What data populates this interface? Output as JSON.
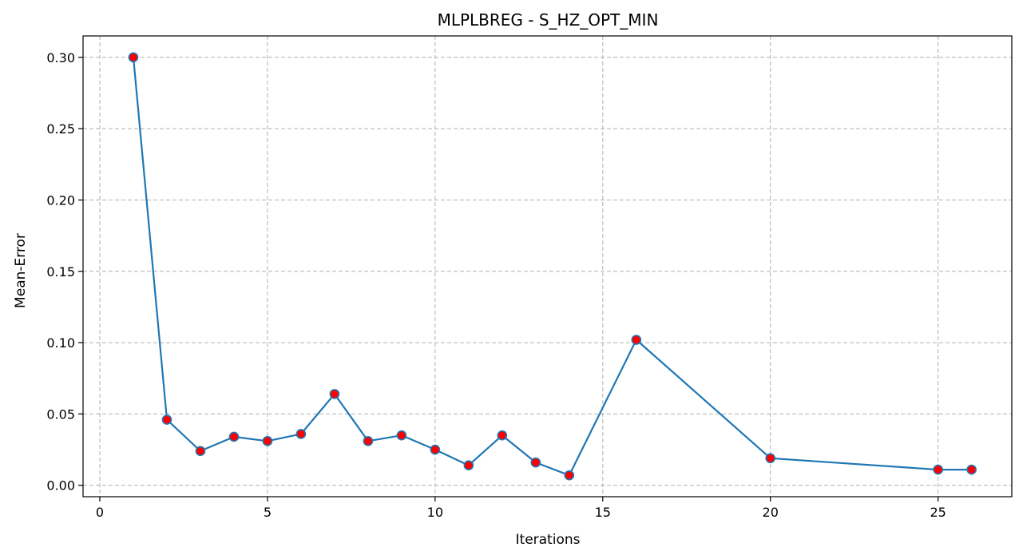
{
  "chart_data": {
    "type": "line",
    "title": "MLPLBREG - S_HZ_OPT_MIN",
    "xlabel": "Iterations",
    "ylabel": "Mean-Error",
    "xlim": [
      -0.5,
      27.2
    ],
    "ylim": [
      -0.008,
      0.315
    ],
    "xticks": [
      0,
      5,
      10,
      15,
      20,
      25
    ],
    "xtick_labels": [
      "0",
      "5",
      "10",
      "15",
      "20",
      "25"
    ],
    "yticks": [
      0.0,
      0.05,
      0.1,
      0.15,
      0.2,
      0.25,
      0.3
    ],
    "ytick_labels": [
      "0.00",
      "0.05",
      "0.10",
      "0.15",
      "0.20",
      "0.25",
      "0.30"
    ],
    "grid": true,
    "series": [
      {
        "x": [
          1,
          2,
          3,
          4,
          5,
          6,
          7,
          8,
          9,
          10,
          11,
          12,
          13,
          14,
          16,
          20,
          25,
          26
        ],
        "y": [
          0.3,
          0.046,
          0.024,
          0.034,
          0.031,
          0.036,
          0.064,
          0.031,
          0.035,
          0.025,
          0.014,
          0.035,
          0.016,
          0.007,
          0.102,
          0.019,
          0.011,
          0.011
        ],
        "line_color": "#1f77b4",
        "marker_face_color": "#ff0000",
        "marker_edge_color": "#1f77b4"
      }
    ]
  }
}
